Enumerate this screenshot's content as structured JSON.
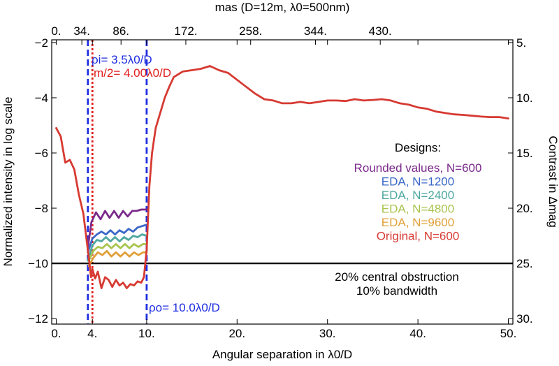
{
  "chart_data": {
    "type": "line",
    "title": "",
    "xlabel": "Angular separation in λ0/D",
    "ylabel": "Normalized intensity in log scale",
    "top_xlabel": "mas (D=12m, λ0=500nm)",
    "right_ylabel": "Contrast in Δmag",
    "xlim": [
      -0.5,
      50.5
    ],
    "ylim": [
      -12.2,
      -1.9
    ],
    "x_ticks": [
      0,
      4,
      10,
      20,
      30,
      40,
      50
    ],
    "x_tick_labels": [
      "0.",
      "4.",
      "10.",
      "20.",
      "30.",
      "40.",
      "50."
    ],
    "y_ticks": [
      -12,
      -10,
      -8,
      -6,
      -4,
      -2
    ],
    "y_tick_labels": [
      "−12",
      "−10",
      "−8",
      "−6",
      "−4",
      "−2"
    ],
    "top_ticks": [
      0,
      2.833,
      7.167,
      14.333,
      21.5,
      28.667,
      35.833
    ],
    "top_tick_labels": [
      "0.",
      "34.",
      "86.",
      "172.",
      "258.",
      "344.",
      "430."
    ],
    "right_ticks": [
      -2.0,
      -4.0,
      -6.0,
      -8.0,
      -10.0,
      -12.0
    ],
    "right_tick_labels": [
      "5.",
      "10.",
      "15.",
      "20.",
      "25.",
      "30."
    ],
    "legend_title": "Designs:",
    "legend_position": "right-center",
    "series": [
      {
        "name": "Rounded values, N=600",
        "color": "#7a2a8a",
        "x": [
          3.5,
          3.9,
          4.4,
          4.9,
          5.4,
          5.9,
          6.4,
          6.9,
          7.4,
          7.9,
          8.4,
          8.9,
          9.4,
          10.0
        ],
        "y": [
          -9.4,
          -8.5,
          -8.15,
          -8.4,
          -8.1,
          -8.35,
          -8.1,
          -8.35,
          -8.1,
          -8.3,
          -8.1,
          -8.1,
          -8.05,
          -8.05
        ]
      },
      {
        "name": "EDA, N=1200",
        "color": "#3a67c8",
        "x": [
          3.5,
          4.0,
          4.5,
          5.0,
          5.5,
          6.0,
          6.5,
          7.0,
          7.5,
          8.0,
          8.5,
          9.0,
          9.5,
          10.0
        ],
        "y": [
          -9.6,
          -9.1,
          -8.95,
          -8.85,
          -8.95,
          -8.8,
          -8.95,
          -8.8,
          -8.9,
          -8.75,
          -8.85,
          -8.7,
          -8.65,
          -8.6
        ]
      },
      {
        "name": "EDA, N=2400",
        "color": "#4fa8a0",
        "x": [
          3.5,
          4.0,
          4.5,
          5.0,
          5.5,
          6.0,
          6.5,
          7.0,
          7.5,
          8.0,
          8.5,
          9.0,
          9.5,
          10.0
        ],
        "y": [
          -9.9,
          -9.35,
          -9.15,
          -9.2,
          -9.05,
          -9.2,
          -9.05,
          -9.2,
          -9.05,
          -9.15,
          -9.0,
          -9.05,
          -8.95,
          -9.0
        ]
      },
      {
        "name": "EDA, N=4800",
        "color": "#a8c44e",
        "x": [
          3.6,
          4.1,
          4.6,
          5.1,
          5.6,
          6.1,
          6.6,
          7.1,
          7.6,
          8.1,
          8.6,
          9.1,
          9.6,
          10.0
        ],
        "y": [
          -9.9,
          -9.55,
          -9.4,
          -9.45,
          -9.3,
          -9.45,
          -9.3,
          -9.45,
          -9.3,
          -9.45,
          -9.3,
          -9.4,
          -9.3,
          -9.3
        ]
      },
      {
        "name": "EDA, N=9600",
        "color": "#e0a038",
        "x": [
          3.6,
          4.1,
          4.6,
          5.1,
          5.6,
          6.1,
          6.6,
          7.1,
          7.6,
          8.1,
          8.6,
          9.1,
          9.6,
          10.0
        ],
        "y": [
          -10.1,
          -9.8,
          -9.6,
          -9.7,
          -9.55,
          -9.75,
          -9.6,
          -9.75,
          -9.6,
          -9.75,
          -9.6,
          -9.7,
          -9.6,
          -9.6
        ]
      },
      {
        "name": "Original, N=600",
        "color": "#d63a32",
        "x": [
          0,
          0.5,
          1.0,
          1.5,
          2.0,
          2.5,
          3.0,
          3.3,
          3.6,
          3.85,
          4.0,
          4.3,
          4.6,
          5.0,
          5.4,
          5.8,
          6.2,
          6.6,
          7.0,
          7.4,
          7.8,
          8.2,
          8.6,
          9.0,
          9.4,
          9.7,
          10.0,
          10.3,
          10.6,
          11.0,
          11.5,
          12.0,
          12.5,
          13.0,
          14.0,
          15.0,
          16.0,
          17.0,
          18.0,
          19.0,
          20.0,
          21.0,
          22.0,
          23.0,
          24.0,
          25.0,
          26.0,
          27.0,
          28.0,
          29.0,
          30.0,
          31.0,
          32.0,
          33.0,
          34.0,
          35.0,
          36.0,
          37.0,
          38.0,
          39.0,
          40.0,
          41.0,
          42.0,
          43.0,
          44.0,
          45.0,
          46.0,
          47.0,
          48.0,
          49.0,
          50.0
        ],
        "y": [
          -5.1,
          -5.4,
          -6.35,
          -6.25,
          -6.6,
          -7.5,
          -8.2,
          -9.0,
          -9.8,
          -10.5,
          -10.2,
          -10.55,
          -10.3,
          -10.9,
          -10.5,
          -10.6,
          -10.85,
          -10.6,
          -10.8,
          -10.7,
          -10.9,
          -10.75,
          -10.8,
          -10.65,
          -10.7,
          -10.5,
          -9.5,
          -7.2,
          -6.0,
          -5.1,
          -4.55,
          -4.0,
          -3.6,
          -3.25,
          -3.05,
          -3.0,
          -2.95,
          -2.85,
          -3.0,
          -3.1,
          -3.35,
          -3.6,
          -3.85,
          -4.05,
          -4.1,
          -4.2,
          -4.2,
          -4.15,
          -4.2,
          -4.15,
          -4.1,
          -4.1,
          -4.12,
          -4.05,
          -4.1,
          -4.08,
          -4.05,
          -4.1,
          -4.2,
          -4.25,
          -4.35,
          -4.4,
          -4.5,
          -4.55,
          -4.6,
          -4.62,
          -4.65,
          -4.68,
          -4.7,
          -4.7,
          -4.75
        ]
      }
    ],
    "reference_lines": [
      {
        "orientation": "vertical",
        "x": 3.5,
        "color": "#1f2ee0",
        "style": "dashed",
        "label": "ρi= 3.5λ0/D"
      },
      {
        "orientation": "vertical",
        "x": 4.0,
        "color": "#e02020",
        "style": "dotted",
        "label": "m/2= 4.00λ0/D"
      },
      {
        "orientation": "vertical",
        "x": 10.0,
        "color": "#1f2ee0",
        "style": "dashed",
        "label": "ρo= 10.0λ0/D"
      },
      {
        "orientation": "horizontal",
        "y": -10.0,
        "color": "#000000",
        "style": "solid"
      }
    ],
    "annotations": [
      "20% central obstruction",
      "10% bandwidth"
    ]
  }
}
